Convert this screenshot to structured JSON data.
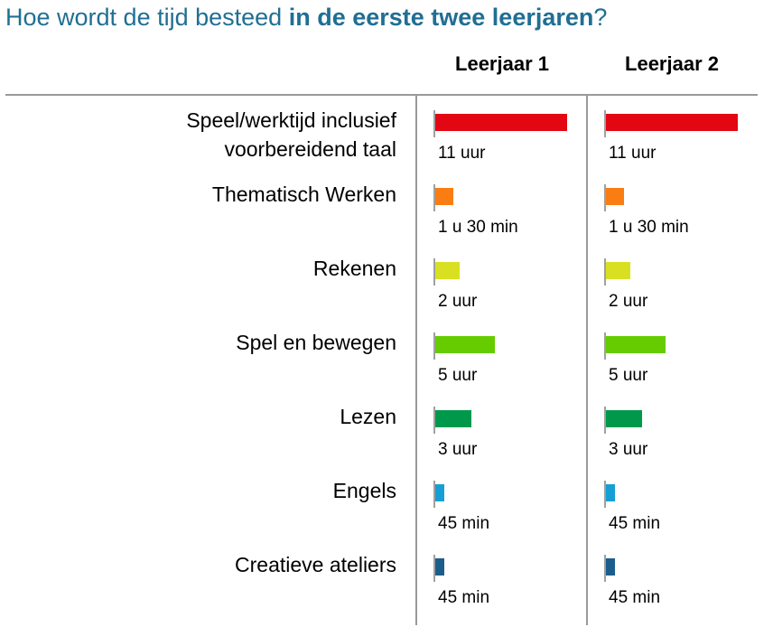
{
  "title": {
    "prefix": "Hoe wordt de tijd besteed ",
    "bold": "in de eerste twee leerjaren",
    "suffix": "?"
  },
  "chart_data": {
    "type": "bar",
    "orientation": "horizontal",
    "columns": [
      "Leerjaar 1",
      "Leerjaar 2"
    ],
    "categories": [
      [
        "Speel/werktijd inclusief ",
        "voorbereidend taal"
      ],
      [
        "Thematisch Werken"
      ],
      [
        "Rekenen"
      ],
      [
        "Spel en bewegen"
      ],
      [
        "Lezen"
      ],
      [
        "Engels"
      ],
      [
        "Creatieve ateliers"
      ]
    ],
    "colors": [
      "#e30613",
      "#fa7d14",
      "#d9e021",
      "#66cc00",
      "#00994c",
      "#169fd4",
      "#1b5e8c"
    ],
    "series": [
      {
        "name": "Leerjaar 1",
        "values_hours": [
          11,
          1.5,
          2,
          5,
          3,
          0.75,
          0.75
        ],
        "value_labels": [
          "11 uur",
          "1 u 30 min",
          "2 uur",
          "5 uur",
          "3 uur",
          "45 min",
          "45 min"
        ]
      },
      {
        "name": "Leerjaar 2",
        "values_hours": [
          11,
          1.5,
          2,
          5,
          3,
          0.75,
          0.75
        ],
        "value_labels": [
          "11 uur",
          "1 u 30 min",
          "2 uur",
          "5 uur",
          "3 uur",
          "45 min",
          "45 min"
        ]
      }
    ],
    "unit": "uur",
    "xlim": [
      0,
      11
    ]
  }
}
